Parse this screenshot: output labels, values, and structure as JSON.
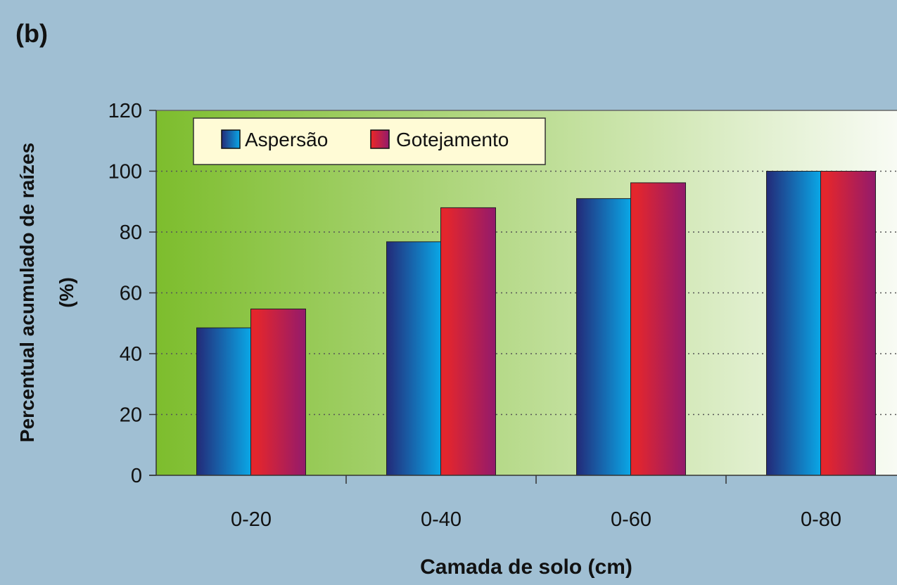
{
  "panel_label": "(b)",
  "chart_data": {
    "type": "bar",
    "categories": [
      "0-20",
      "0-40",
      "0-60",
      "0-80"
    ],
    "series": [
      {
        "name": "Aspersão",
        "values": [
          48.5,
          76.8,
          91.0,
          100
        ]
      },
      {
        "name": "Gotejamento",
        "values": [
          54.7,
          88.0,
          96.2,
          100
        ]
      }
    ],
    "ylabel_line1": "Percentual acumulado de raízes",
    "ylabel_line2": "(%)",
    "xlabel": "Camada de solo (cm)",
    "ylim": [
      0,
      120
    ],
    "yticks": [
      0,
      20,
      40,
      60,
      80,
      100,
      120
    ],
    "grid": "horizontal dotted",
    "legend_position": "top-left",
    "colors": {
      "page_background": "#a0bfd3",
      "plot_gradient_start": "#7dbd2d",
      "plot_gradient_end": "#f8fbf4",
      "legend_background": "#fffbd6",
      "series_1_dark": "#232a78",
      "series_1_light": "#0aa7e6",
      "series_2_red": "#e3262d",
      "series_2_purple": "#931a6c"
    }
  }
}
